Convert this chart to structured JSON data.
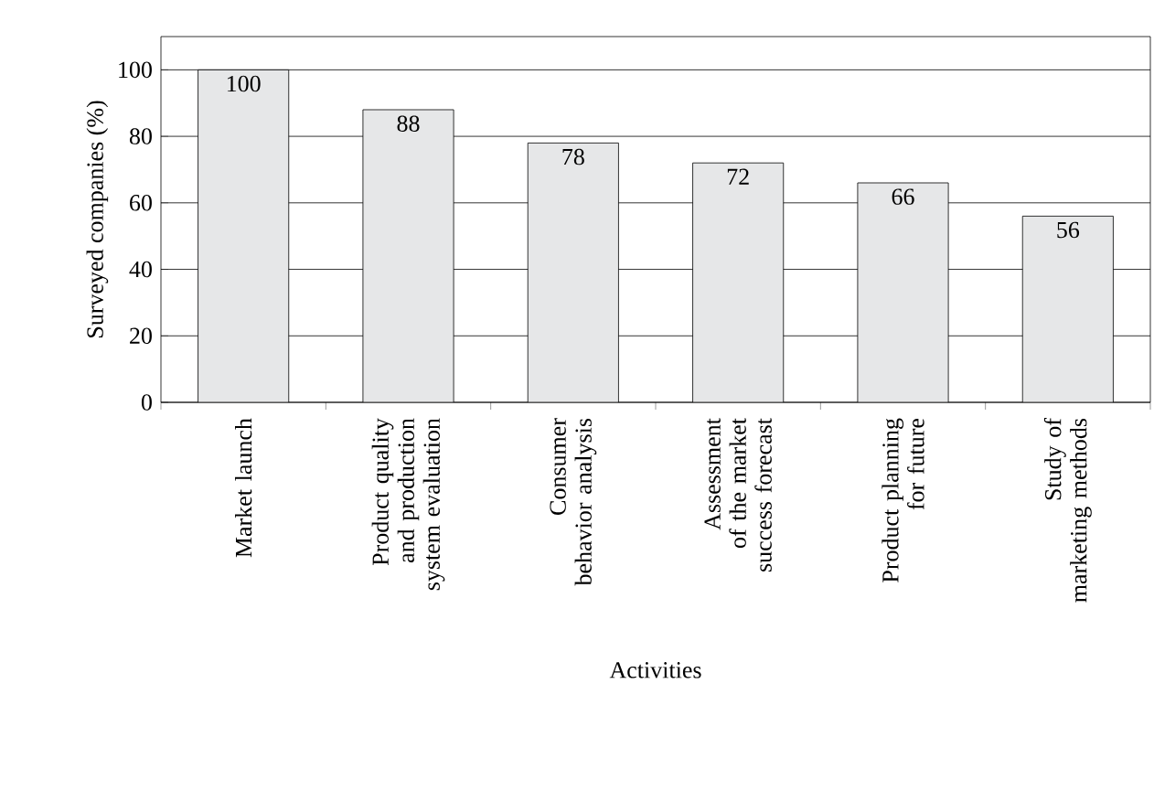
{
  "chart_data": {
    "type": "bar",
    "xlabel": "Activities",
    "ylabel": "Surveyed companies (%)",
    "categories": [
      "Market launch",
      "Product quality and production system evaluation",
      "Consumer behavior analysis",
      "Assessment of the market success forecast",
      "Product planning for future",
      "Study of marketing methods"
    ],
    "values": [
      100,
      88,
      78,
      72,
      66,
      56
    ],
    "color": "#e6e7e8",
    "data_labels": true,
    "grid": "y",
    "ylim": [
      0,
      110
    ],
    "yticks": [
      0,
      20,
      40,
      60,
      80,
      100
    ]
  }
}
